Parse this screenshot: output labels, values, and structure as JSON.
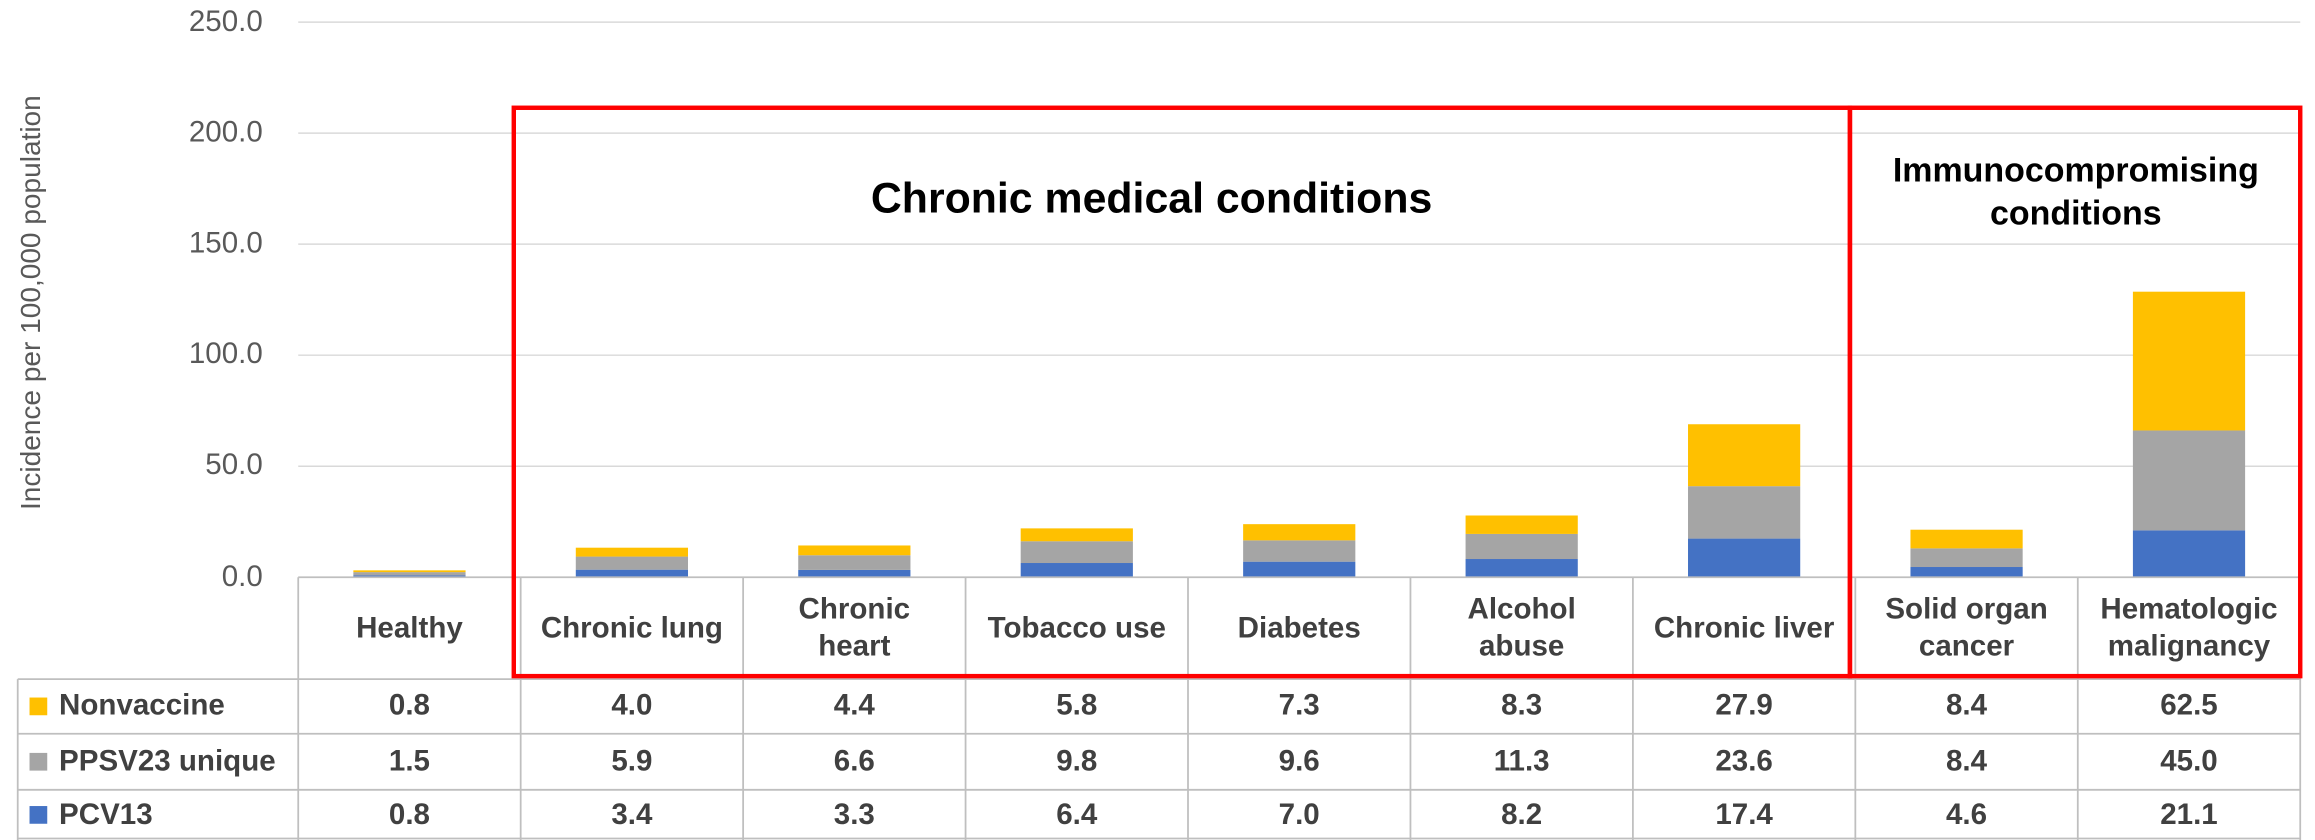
{
  "chart_data": {
    "type": "stacked_bar",
    "y_label": "Incidence per 100,000 population",
    "categories": [
      "Healthy",
      "Chronic lung",
      "Chronic\nheart",
      "Tobacco use",
      "Diabetes",
      "Alcohol\nabuse",
      "Chronic liver",
      "Solid organ\ncancer",
      "Hematologic\nmalignancy"
    ],
    "series": [
      {
        "name": "Nonvaccine",
        "color": "#FFC000",
        "values": [
          0.8,
          4.0,
          4.4,
          5.8,
          7.3,
          8.3,
          27.9,
          8.4,
          62.5
        ],
        "value_labels": [
          "0.8",
          "4.0",
          "4.4",
          "5.8",
          "7.3",
          "8.3",
          "27.9",
          "8.4",
          "62.5"
        ]
      },
      {
        "name": "PPSV23 unique",
        "color": "#A5A5A5",
        "values": [
          1.5,
          5.9,
          6.6,
          9.8,
          9.6,
          11.3,
          23.6,
          8.4,
          45.0
        ],
        "value_labels": [
          "1.5",
          "5.9",
          "6.6",
          "9.8",
          "9.6",
          "11.3",
          "23.6",
          "8.4",
          "45.0"
        ]
      },
      {
        "name": "PCV13",
        "color": "#4472C4",
        "values": [
          0.8,
          3.4,
          3.3,
          6.4,
          7.0,
          8.2,
          17.4,
          4.6,
          21.1
        ],
        "value_labels": [
          "0.8",
          "3.4",
          "3.3",
          "6.4",
          "7.0",
          "8.2",
          "17.4",
          "4.6",
          "21.1"
        ]
      }
    ],
    "ylim": [
      0,
      250
    ],
    "yticks": [
      {
        "value": 0,
        "label": "0.0"
      },
      {
        "value": 50,
        "label": "50.0"
      },
      {
        "value": 100,
        "label": "100.0"
      },
      {
        "value": 150,
        "label": "150.0"
      },
      {
        "value": 200,
        "label": "200.0"
      },
      {
        "value": 250,
        "label": "250.0"
      }
    ],
    "grid": true,
    "annotations": [
      "Chronic medical conditions",
      "Immunocompromising\nconditions"
    ]
  }
}
